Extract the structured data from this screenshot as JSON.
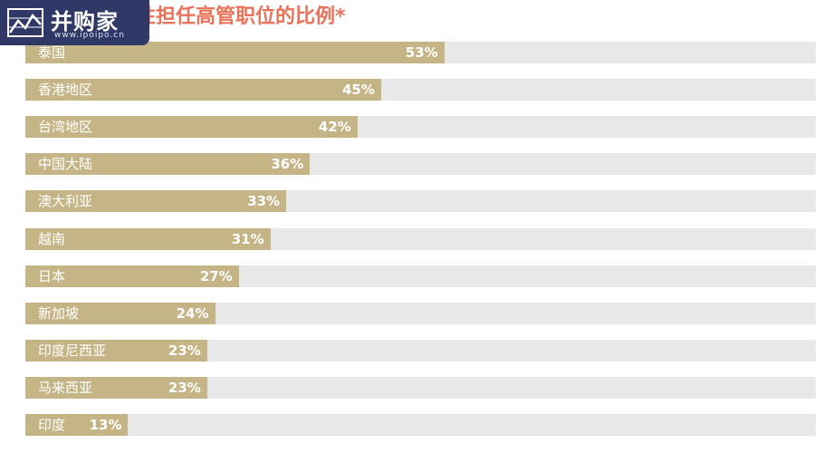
{
  "logo": {
    "name": "并购家",
    "url": "www.ipoipo.cn"
  },
  "colors": {
    "bar": "#c5b586",
    "track": "#e8e8e8",
    "title": "#e8735a",
    "logo_bg": "#2f3866"
  },
  "chart_data": {
    "type": "bar",
    "orientation": "horizontal",
    "title": "女性担任高管职位的比例*",
    "title_visible": "性担任高管职位的比例*",
    "xlim": [
      0,
      100
    ],
    "grid": false,
    "categories": [
      "泰国",
      "香港地区",
      "台湾地区",
      "中国大陆",
      "澳大利亚",
      "越南",
      "日本",
      "新加坡",
      "印度尼西亚",
      "马来西亚",
      "印度"
    ],
    "values": [
      53,
      45,
      42,
      36,
      33,
      31,
      27,
      24,
      23,
      23,
      13
    ],
    "value_labels": [
      "53%",
      "45%",
      "42%",
      "36%",
      "33%",
      "31%",
      "27%",
      "24%",
      "23%",
      "23%",
      "13%"
    ]
  }
}
